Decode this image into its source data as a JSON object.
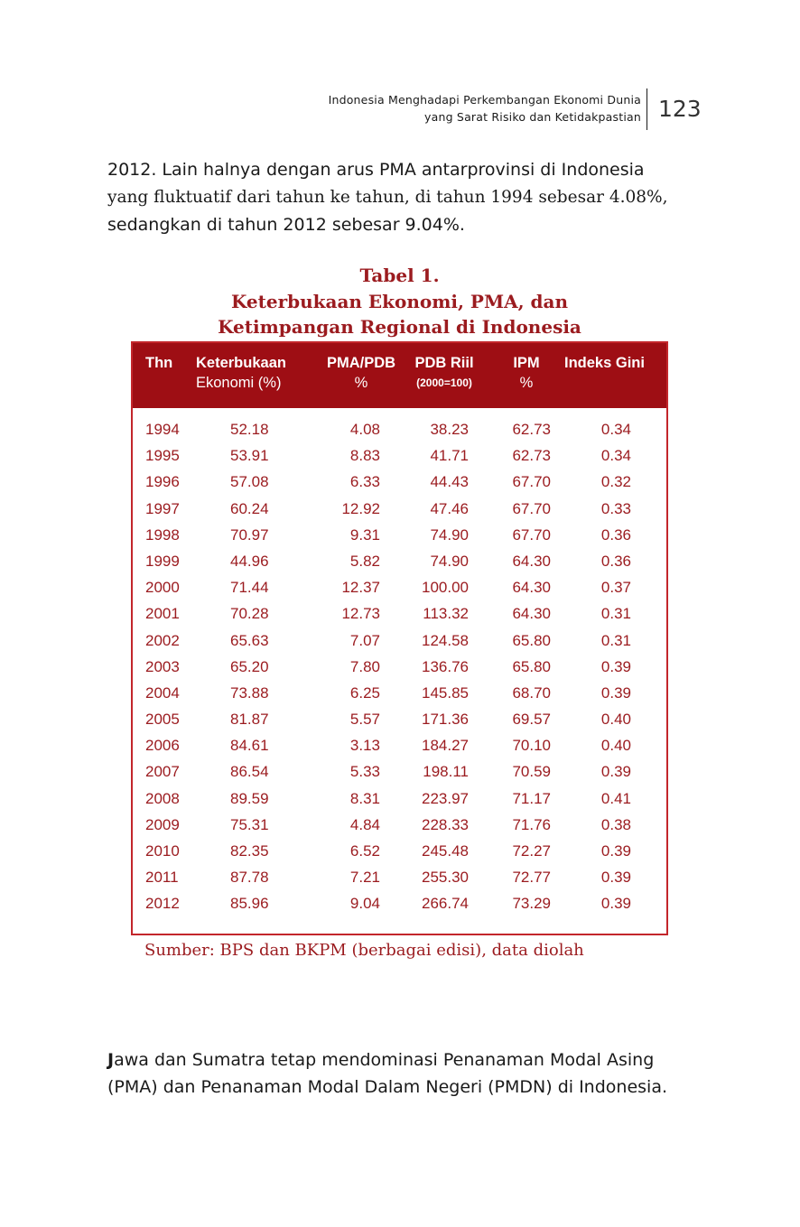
{
  "header": {
    "line1": "Indonesia Menghadapi Perkembangan Ekonomi Dunia",
    "line2": "yang Sarat Risiko dan Ketidakpastian",
    "page_number": "123"
  },
  "intro": {
    "part1": "2012. Lain halnya dengan arus PMA antarprovinsi di Indonesia",
    "part2": "yang fluktuatif dari tahun ke tahun, di tahun 1994 sebesar 4.08%,",
    "part3": "sedangkan di tahun 2012 sebesar 9.04%."
  },
  "table": {
    "caption": {
      "line1": "Tabel 1.",
      "line2": "Keterbukaan Ekonomi, PMA, dan",
      "line3": "Ketimpangan Regional di Indonesia"
    },
    "headers": {
      "year": "Thn",
      "open_1": "Keterbukaan",
      "open_2": "Ekonomi (%)",
      "pma_1": "PMA/PDB",
      "pma_2": "%",
      "pdb_1": "PDB Riil",
      "pdb_2": "(2000=100)",
      "ipm_1": "IPM",
      "ipm_2": "%",
      "gini": "Indeks Gini"
    },
    "rows": [
      [
        "1994",
        "52.18",
        "4.08",
        "38.23",
        "62.73",
        "0.34"
      ],
      [
        "1995",
        "53.91",
        "8.83",
        "41.71",
        "62.73",
        "0.34"
      ],
      [
        "1996",
        "57.08",
        "6.33",
        "44.43",
        "67.70",
        "0.32"
      ],
      [
        "1997",
        "60.24",
        "12.92",
        "47.46",
        "67.70",
        "0.33"
      ],
      [
        "1998",
        "70.97",
        "9.31",
        "74.90",
        "67.70",
        "0.36"
      ],
      [
        "1999",
        "44.96",
        "5.82",
        "74.90",
        "64.30",
        "0.36"
      ],
      [
        "2000",
        "71.44",
        "12.37",
        "100.00",
        "64.30",
        "0.37"
      ],
      [
        "2001",
        "70.28",
        "12.73",
        "113.32",
        "64.30",
        "0.31"
      ],
      [
        "2002",
        "65.63",
        "7.07",
        "124.58",
        "65.80",
        "0.31"
      ],
      [
        "2003",
        "65.20",
        "7.80",
        "136.76",
        "65.80",
        "0.39"
      ],
      [
        "2004",
        "73.88",
        "6.25",
        "145.85",
        "68.70",
        "0.39"
      ],
      [
        "2005",
        "81.87",
        "5.57",
        "171.36",
        "69.57",
        "0.40"
      ],
      [
        "2006",
        "84.61",
        "3.13",
        "184.27",
        "70.10",
        "0.40"
      ],
      [
        "2007",
        "86.54",
        "5.33",
        "198.11",
        "70.59",
        "0.39"
      ],
      [
        "2008",
        "89.59",
        "8.31",
        "223.97",
        "71.17",
        "0.41"
      ],
      [
        "2009",
        "75.31",
        "4.84",
        "228.33",
        "71.76",
        "0.38"
      ],
      [
        "2010",
        "82.35",
        "6.52",
        "245.48",
        "72.27",
        "0.39"
      ],
      [
        "2011",
        "87.78",
        "7.21",
        "255.30",
        "72.77",
        "0.39"
      ],
      [
        "2012",
        "85.96",
        "9.04",
        "266.74",
        "73.29",
        "0.39"
      ]
    ],
    "source": "Sumber: BPS dan BKPM (berbagai edisi), data diolah"
  },
  "closing": {
    "dropcap": "J",
    "line1_rest": "awa dan Sumatra tetap mendominasi Penanaman Modal Asing",
    "line2": "(PMA) dan Penanaman Modal Dalam Negeri (PMDN) di Indonesia."
  },
  "colors": {
    "accent": "#9b1b1f",
    "header_bg": "#9e0e14",
    "text": "#1a1a1a"
  }
}
